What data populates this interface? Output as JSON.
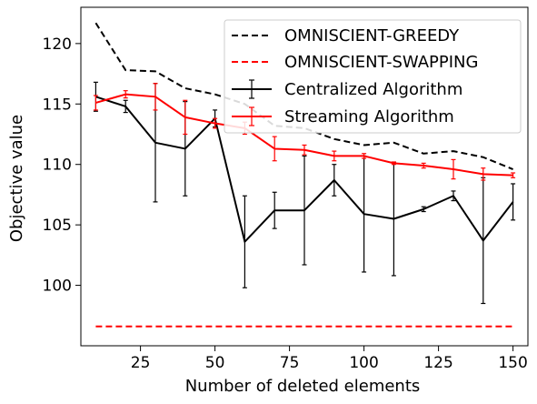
{
  "chart_data": {
    "type": "line",
    "xlabel": "Number of deleted elements",
    "ylabel": "Objective value",
    "xlim": [
      5,
      155
    ],
    "ylim": [
      95,
      123
    ],
    "xticks": [
      25,
      50,
      75,
      100,
      125,
      150
    ],
    "yticks": [
      100,
      105,
      110,
      115,
      120
    ],
    "grid": false,
    "legend_position": "top-right",
    "series": [
      {
        "name": "OMNISCIENT-GREEDY",
        "color": "#000000",
        "style": "dashed",
        "x": [
          10,
          20,
          30,
          40,
          50,
          60,
          70,
          80,
          90,
          100,
          110,
          120,
          130,
          140,
          150
        ],
        "y": [
          121.7,
          117.8,
          117.7,
          116.3,
          115.8,
          115.0,
          113.2,
          113.0,
          112.1,
          111.6,
          111.8,
          110.9,
          111.1,
          110.6,
          109.6
        ]
      },
      {
        "name": "OMNISCIENT-SWAPPING",
        "color": "#ff0000",
        "style": "dashed",
        "x": [
          10,
          150
        ],
        "y": [
          96.6,
          96.6
        ]
      },
      {
        "name": "Centralized Algorithm",
        "color": "#000000",
        "style": "solid",
        "x": [
          10,
          20,
          30,
          40,
          50,
          60,
          70,
          80,
          90,
          100,
          110,
          120,
          130,
          140,
          150
        ],
        "y": [
          115.6,
          114.8,
          111.8,
          111.3,
          113.8,
          103.6,
          106.2,
          106.2,
          108.7,
          105.9,
          105.5,
          106.3,
          107.4,
          103.7,
          106.9
        ],
        "err": [
          1.2,
          0.5,
          4.9,
          3.9,
          0.7,
          3.8,
          1.5,
          4.5,
          1.3,
          4.8,
          4.7,
          0.2,
          0.4,
          5.2,
          1.5
        ]
      },
      {
        "name": "Streaming Algorithm",
        "color": "#ff0000",
        "style": "solid",
        "x": [
          10,
          20,
          30,
          40,
          50,
          60,
          70,
          80,
          90,
          100,
          110,
          120,
          130,
          140,
          150
        ],
        "y": [
          115.1,
          115.8,
          115.6,
          113.9,
          113.4,
          113.0,
          111.3,
          111.2,
          110.7,
          110.7,
          110.1,
          109.9,
          109.6,
          109.2,
          109.1
        ],
        "err": [
          0.6,
          0.3,
          1.1,
          1.4,
          0.4,
          0.5,
          1.0,
          0.4,
          0.4,
          0.2,
          0.1,
          0.2,
          0.8,
          0.5,
          0.2
        ]
      }
    ]
  }
}
